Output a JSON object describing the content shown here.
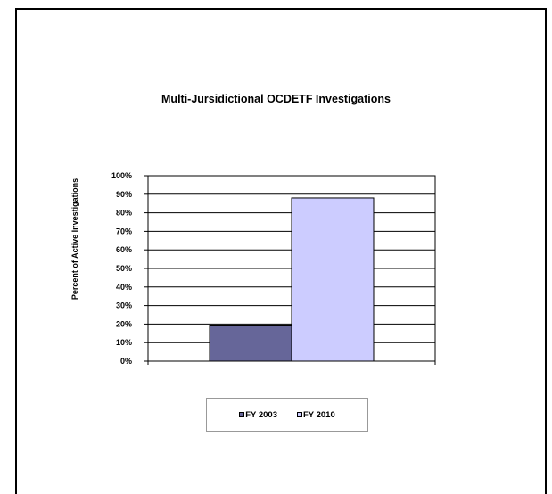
{
  "chart_data": {
    "type": "bar",
    "title": "Multi-Jursidictional OCDETF Investigations",
    "xlabel": "",
    "ylabel": "Percent of Active Investigations",
    "ylim": [
      0,
      100
    ],
    "yticks": [
      "0%",
      "10%",
      "20%",
      "30%",
      "40%",
      "50%",
      "60%",
      "70%",
      "80%",
      "90%",
      "100%"
    ],
    "grid": true,
    "legend_position": "bottom",
    "series": [
      {
        "name": "FY 2003",
        "values": [
          19
        ],
        "color": "#666699"
      },
      {
        "name": "FY 2010",
        "values": [
          88
        ],
        "color": "#ccccff"
      }
    ]
  }
}
